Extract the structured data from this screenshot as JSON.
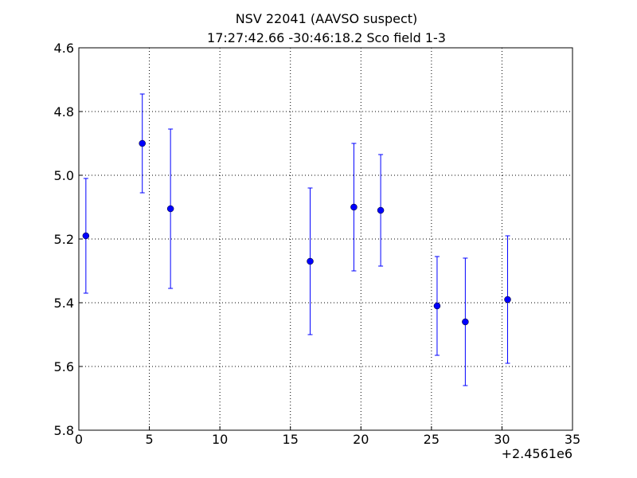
{
  "chart_data": {
    "type": "errorbar",
    "title": "NSV 22041  (AAVSO suspect)",
    "subtitle": "17:27:42.66 -30:46:18.2 Sco field 1-3",
    "x_offset_label": "+2.4561e6",
    "series": [
      {
        "color": "#0000ff",
        "x": [
          0.5,
          4.5,
          6.5,
          16.4,
          19.5,
          21.4,
          25.4,
          27.4,
          30.4
        ],
        "values": [
          5.19,
          4.9,
          5.105,
          5.27,
          5.1,
          5.11,
          5.41,
          5.46,
          5.39
        ],
        "errors": [
          0.18,
          0.155,
          0.25,
          0.23,
          0.2,
          0.175,
          0.155,
          0.2,
          0.2
        ]
      }
    ],
    "xlim": [
      0,
      35
    ],
    "xticks": [
      0,
      5,
      10,
      15,
      20,
      25,
      30,
      35
    ],
    "ylim": [
      4.6,
      5.8
    ],
    "y_inverted": true,
    "yticks": [
      4.6,
      4.8,
      {
        "value": 5,
        "label": "5.0"
      },
      5.2,
      5.4,
      5.6,
      5.8
    ],
    "grid": true
  }
}
